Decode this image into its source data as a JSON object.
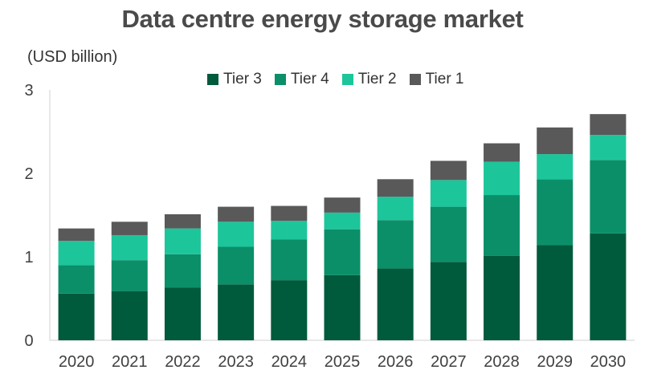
{
  "chart_data": {
    "type": "bar",
    "stacked": true,
    "title": "Data centre energy storage market",
    "ylabel": "(USD billion)",
    "xlabel": "",
    "categories": [
      "2020",
      "2021",
      "2022",
      "2023",
      "2024",
      "2025",
      "2026",
      "2027",
      "2028",
      "2029",
      "2030"
    ],
    "ylim": [
      0,
      3
    ],
    "yticks": [
      "0",
      "1",
      "2",
      "3"
    ],
    "grid": false,
    "legend_position": "top",
    "series": [
      {
        "name": "Tier 3",
        "color": "#005a3c",
        "values": [
          0.56,
          0.59,
          0.63,
          0.67,
          0.72,
          0.78,
          0.86,
          0.94,
          1.01,
          1.14,
          1.28
        ]
      },
      {
        "name": "Tier 4",
        "color": "#0b8f68",
        "values": [
          0.34,
          0.37,
          0.4,
          0.45,
          0.49,
          0.55,
          0.58,
          0.66,
          0.73,
          0.79,
          0.88
        ]
      },
      {
        "name": "Tier 2",
        "color": "#1dc59a",
        "values": [
          0.29,
          0.3,
          0.31,
          0.3,
          0.22,
          0.2,
          0.28,
          0.32,
          0.4,
          0.3,
          0.3
        ]
      },
      {
        "name": "Tier 1",
        "color": "#595959",
        "values": [
          0.15,
          0.16,
          0.17,
          0.18,
          0.18,
          0.18,
          0.21,
          0.23,
          0.22,
          0.32,
          0.25
        ]
      }
    ]
  }
}
